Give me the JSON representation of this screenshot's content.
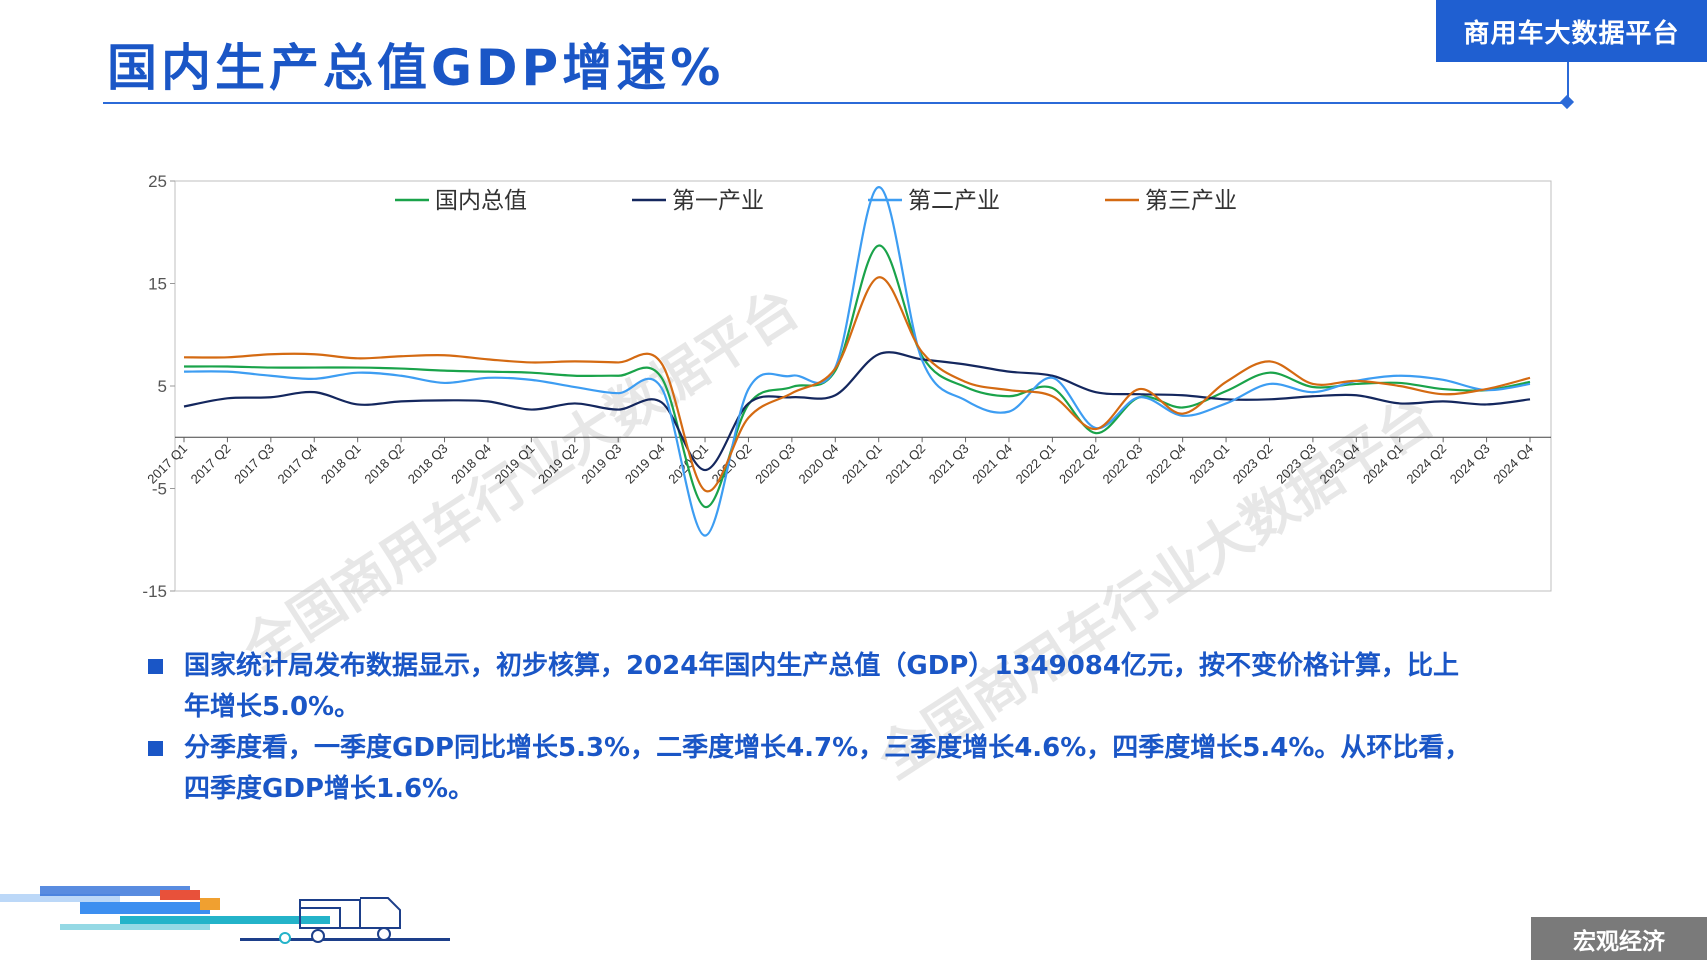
{
  "header": {
    "title": "国内生产总值GDP增速%",
    "brand": "商用车大数据平台"
  },
  "footer": {
    "section_tag": "宏观经济"
  },
  "watermark": {
    "text": "全国商用车行业大数据平台"
  },
  "colors": {
    "accent": "#1a56c6",
    "gdp": "#1aa34a",
    "primary": "#14275e",
    "secondary": "#3d9df2",
    "tertiary": "#d46a12"
  },
  "chart_data": {
    "type": "line",
    "title": "",
    "xlabel": "",
    "ylabel": "",
    "ylim": [
      -15,
      25
    ],
    "yticks": [
      25,
      15,
      5,
      -5,
      -15
    ],
    "legend_position": "top",
    "grid": false,
    "categories": [
      "2017 Q1",
      "2017 Q2",
      "2017 Q3",
      "2017 Q4",
      "2018 Q1",
      "2018 Q2",
      "2018 Q3",
      "2018 Q4",
      "2019 Q1",
      "2019 Q2",
      "2019 Q3",
      "2019 Q4",
      "2020 Q1",
      "2020 Q2",
      "2020 Q3",
      "2020 Q4",
      "2021 Q1",
      "2021 Q2",
      "2021 Q3",
      "2021 Q4",
      "2022 Q1",
      "2022 Q2",
      "2022 Q3",
      "2022 Q4",
      "2023 Q1",
      "2023 Q2",
      "2023 Q3",
      "2023 Q4",
      "2024 Q1",
      "2024 Q2",
      "2024 Q3",
      "2024 Q4"
    ],
    "series": [
      {
        "name": "国内总值",
        "color": "#1aa34a",
        "values": [
          6.9,
          6.9,
          6.8,
          6.8,
          6.8,
          6.7,
          6.5,
          6.4,
          6.3,
          6.0,
          6.0,
          5.8,
          -6.8,
          3.2,
          4.9,
          6.5,
          18.7,
          7.9,
          4.9,
          4.0,
          4.8,
          0.4,
          3.9,
          2.9,
          4.5,
          6.3,
          4.9,
          5.2,
          5.3,
          4.7,
          4.6,
          5.4
        ]
      },
      {
        "name": "第一产业",
        "color": "#14275e",
        "values": [
          3.0,
          3.8,
          3.9,
          4.4,
          3.2,
          3.5,
          3.6,
          3.5,
          2.7,
          3.3,
          2.7,
          3.4,
          -3.2,
          3.3,
          3.9,
          4.1,
          8.1,
          7.6,
          7.1,
          6.4,
          6.0,
          4.4,
          4.2,
          4.1,
          3.7,
          3.7,
          4.0,
          4.1,
          3.3,
          3.5,
          3.2,
          3.7
        ]
      },
      {
        "name": "第二产业",
        "color": "#3d9df2",
        "values": [
          6.4,
          6.4,
          6.0,
          5.7,
          6.3,
          6.0,
          5.3,
          5.8,
          5.6,
          4.9,
          4.3,
          4.8,
          -9.6,
          4.7,
          6.0,
          6.8,
          24.4,
          7.5,
          3.6,
          2.5,
          5.8,
          0.9,
          3.9,
          2.1,
          3.3,
          5.2,
          4.4,
          5.5,
          6.0,
          5.6,
          4.6,
          5.2
        ]
      },
      {
        "name": "第三产业",
        "color": "#d46a12",
        "values": [
          7.8,
          7.8,
          8.1,
          8.1,
          7.7,
          7.9,
          8.0,
          7.6,
          7.3,
          7.4,
          7.3,
          7.2,
          -5.2,
          1.9,
          4.3,
          6.7,
          15.6,
          8.3,
          5.4,
          4.6,
          4.0,
          0.8,
          4.7,
          2.3,
          5.4,
          7.4,
          5.2,
          5.5,
          5.0,
          4.2,
          4.7,
          5.8
        ]
      }
    ]
  },
  "bullets": [
    {
      "line1": "国家统计局发布数据显示，初步核算，2024年国内生产总值（GDP）1349084亿元，按不变价格计算，比上",
      "line2": "年增长5.0%。"
    },
    {
      "line1": "分季度看，一季度GDP同比增长5.3%，二季度增长4.7%，三季度增长4.6%，四季度增长5.4%。从环比看，",
      "line2": "四季度GDP增长1.6%。"
    }
  ]
}
